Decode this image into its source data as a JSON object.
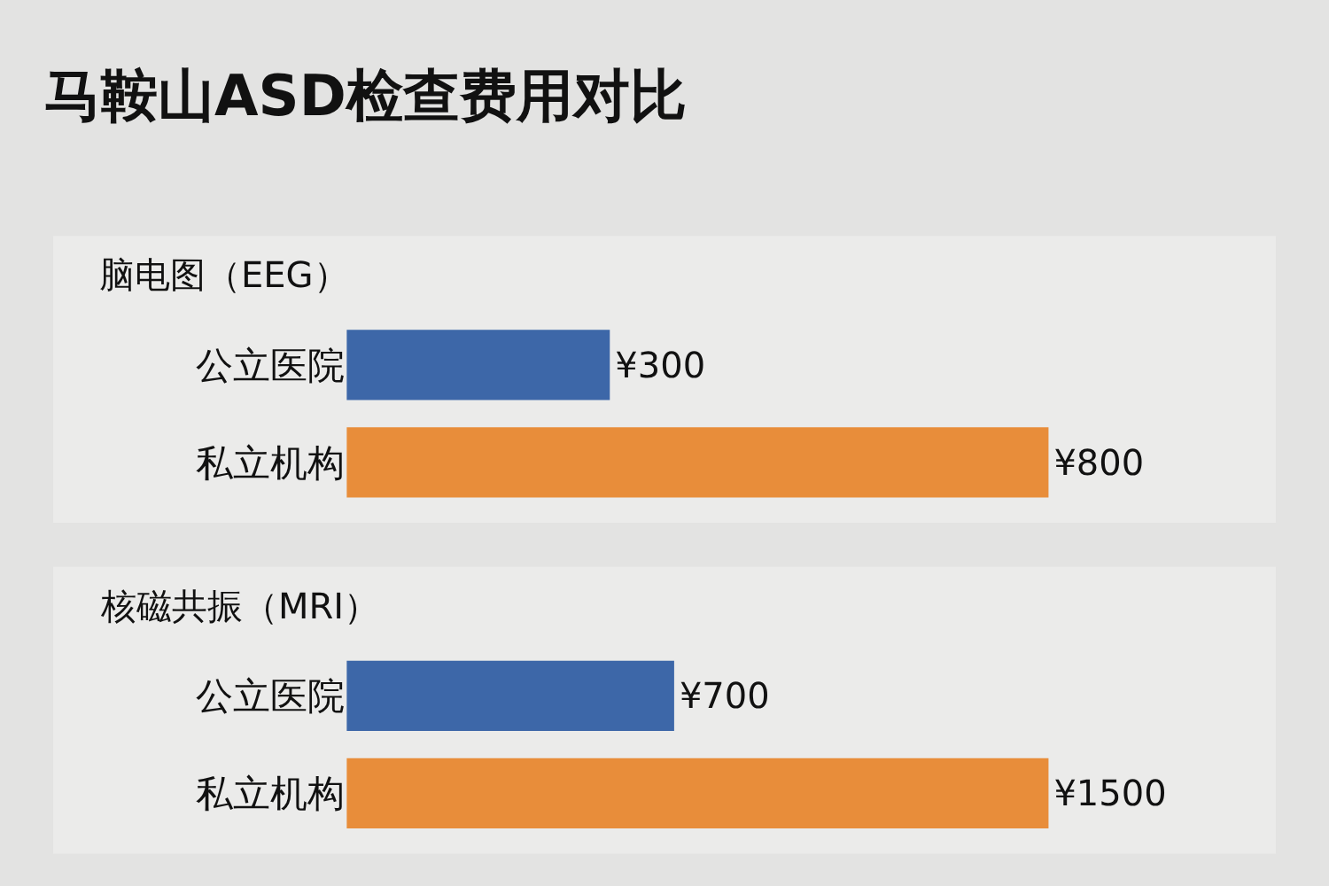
{
  "chart_data": [
    {
      "type": "bar",
      "orientation": "horizontal",
      "title": "马鞍山ASD检查费用对比",
      "subtitle": "脑电图（EEG）",
      "categories": [
        "公立医院",
        "私立机构"
      ],
      "values": [
        300,
        800
      ],
      "colors": [
        "#3d67a8",
        "#e88d3a"
      ],
      "value_labels": [
        "¥300",
        "¥800"
      ]
    },
    {
      "type": "bar",
      "orientation": "horizontal",
      "subtitle": "核磁共振（MRI）",
      "categories": [
        "公立医院",
        "私立机构"
      ],
      "values": [
        700,
        1500
      ],
      "colors": [
        "#3d67a8",
        "#e88d3a"
      ],
      "value_labels": [
        "¥700",
        "¥1500"
      ]
    }
  ]
}
